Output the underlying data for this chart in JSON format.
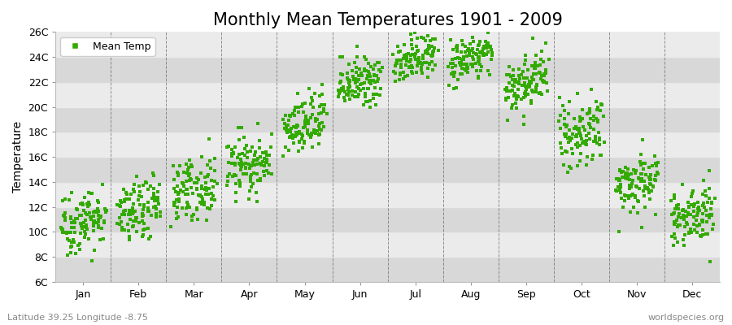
{
  "title": "Monthly Mean Temperatures 1901 - 2009",
  "ylabel": "Temperature",
  "xlabel_months": [
    "Jan",
    "Feb",
    "Mar",
    "Apr",
    "May",
    "Jun",
    "Jul",
    "Aug",
    "Sep",
    "Oct",
    "Nov",
    "Dec"
  ],
  "subtitle_left": "Latitude 39.25 Longitude -8.75",
  "subtitle_right": "worldspecies.org",
  "ylim": [
    6,
    26
  ],
  "yticks": [
    6,
    8,
    10,
    12,
    14,
    16,
    18,
    20,
    22,
    24,
    26
  ],
  "ytick_labels": [
    "6C",
    "8C",
    "10C",
    "12C",
    "14C",
    "16C",
    "18C",
    "20C",
    "22C",
    "24C",
    "26C"
  ],
  "marker_color": "#33aa00",
  "marker": "s",
  "marker_size": 2.5,
  "background_color": "#ffffff",
  "plot_bg_color": "#e8e8e8",
  "band_color_dark": "#d8d8d8",
  "band_color_light": "#ebebeb",
  "grid_color": "#666666",
  "title_fontsize": 15,
  "label_fontsize": 10,
  "tick_fontsize": 9,
  "legend_label": "Mean Temp",
  "monthly_means": [
    10.5,
    11.2,
    13.0,
    15.0,
    18.0,
    21.5,
    23.5,
    23.5,
    21.5,
    17.5,
    13.5,
    11.0
  ],
  "monthly_stds": [
    1.3,
    1.2,
    1.2,
    1.2,
    1.2,
    1.0,
    0.9,
    0.9,
    1.1,
    1.2,
    1.2,
    1.2
  ],
  "n_years": 109,
  "seed": 42,
  "trend_per_year": 0.008
}
